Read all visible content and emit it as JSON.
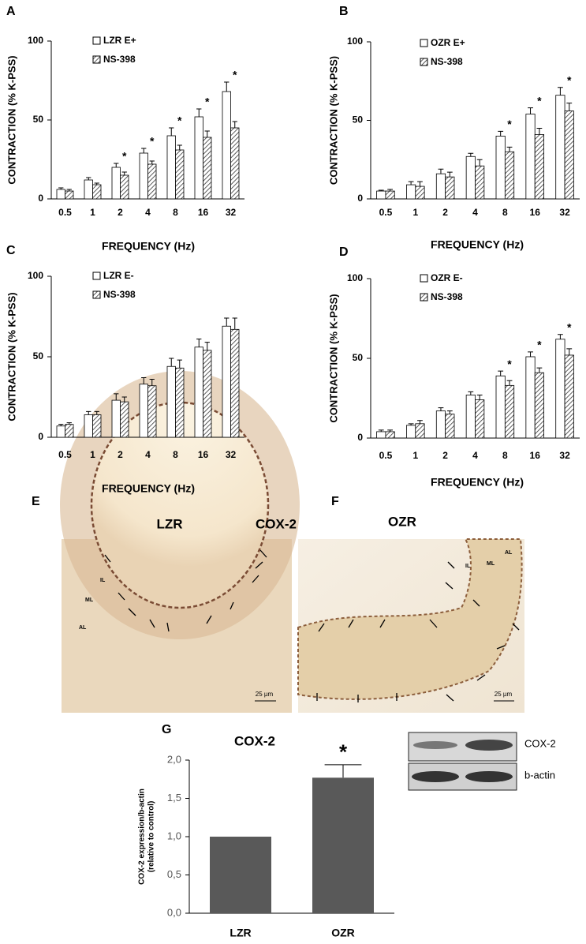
{
  "chart_data": [
    {
      "type": "bar",
      "label": "A",
      "ylabel": "CONTRACTION (% K-PSS)",
      "xlabel": "FREQUENCY (Hz)",
      "categories": [
        "0.5",
        "1",
        "2",
        "4",
        "8",
        "16",
        "32"
      ],
      "series": [
        {
          "name": "LZR E+",
          "color": "#ffffff",
          "hatch": false,
          "values": [
            6,
            12,
            20,
            29,
            40,
            52,
            68
          ],
          "errors": [
            1,
            1.5,
            2.5,
            3,
            5,
            5,
            6
          ]
        },
        {
          "name": "NS-398",
          "color": "#ffffff",
          "hatch": true,
          "values": [
            5,
            9,
            15,
            22,
            31,
            39,
            45
          ],
          "errors": [
            1,
            1,
            2,
            2,
            3,
            4,
            4
          ]
        }
      ],
      "significant_indices": [
        2,
        3,
        4,
        5,
        6
      ],
      "significance_label": "*",
      "ylim": [
        0,
        100
      ],
      "yticks": [
        0,
        50,
        100
      ]
    },
    {
      "type": "bar",
      "label": "B",
      "ylabel": "CONTRACTION (% K-PSS)",
      "xlabel": "FREQUENCY (Hz)",
      "categories": [
        "0.5",
        "1",
        "2",
        "4",
        "8",
        "16",
        "32"
      ],
      "series": [
        {
          "name": "OZR E+",
          "color": "#ffffff",
          "hatch": false,
          "values": [
            5,
            9,
            16,
            27,
            40,
            54,
            66
          ],
          "errors": [
            0.5,
            2,
            3,
            2,
            3,
            4,
            5
          ]
        },
        {
          "name": "NS-398",
          "color": "#ffffff",
          "hatch": true,
          "values": [
            5,
            8,
            14,
            21,
            30,
            41,
            56
          ],
          "errors": [
            1,
            3,
            3,
            4,
            3,
            4,
            5
          ]
        }
      ],
      "significant_indices": [
        4,
        5,
        6
      ],
      "significance_label": "*",
      "ylim": [
        0,
        100
      ],
      "yticks": [
        0,
        50,
        100
      ]
    },
    {
      "type": "bar",
      "label": "C",
      "ylabel": "CONTRACTION (% K-PSS)",
      "xlabel": "FREQUENCY (Hz)",
      "categories": [
        "0.5",
        "1",
        "2",
        "4",
        "8",
        "16",
        "32"
      ],
      "series": [
        {
          "name": "LZR E-",
          "color": "#ffffff",
          "hatch": false,
          "values": [
            7,
            14,
            23,
            33,
            44,
            56,
            69
          ],
          "errors": [
            1,
            2,
            4,
            4,
            5,
            5,
            5
          ]
        },
        {
          "name": "NS-398",
          "color": "#ffffff",
          "hatch": true,
          "values": [
            8,
            14,
            22,
            32,
            43,
            54,
            67
          ],
          "errors": [
            1,
            2,
            3,
            4,
            5,
            5,
            7
          ]
        }
      ],
      "ylim": [
        0,
        100
      ],
      "yticks": [
        0,
        50,
        100
      ]
    },
    {
      "type": "bar",
      "label": "D",
      "ylabel": "CONTRACTION (% K-PSS)",
      "xlabel": "FREQUENCY (Hz)",
      "categories": [
        "0.5",
        "1",
        "2",
        "4",
        "8",
        "16",
        "32"
      ],
      "series": [
        {
          "name": "OZR E-",
          "color": "#ffffff",
          "hatch": false,
          "values": [
            4,
            8,
            17,
            27,
            39,
            51,
            62
          ],
          "errors": [
            1,
            1,
            2,
            2,
            3,
            3,
            3
          ]
        },
        {
          "name": "NS-398",
          "color": "#ffffff",
          "hatch": true,
          "values": [
            4,
            9,
            15,
            24,
            33,
            41,
            52
          ],
          "errors": [
            1,
            2,
            2,
            3,
            3,
            3,
            4
          ]
        }
      ],
      "significant_indices": [
        4,
        5,
        6
      ],
      "significance_label": "*",
      "ylim": [
        0,
        100
      ],
      "yticks": [
        0,
        50,
        100
      ]
    },
    {
      "type": "bar",
      "label": "G",
      "title": "COX-2",
      "ylabel": [
        "COX-2 expression/b-actin",
        "(relative to control)"
      ],
      "categories": [
        "LZR",
        "OZR"
      ],
      "series": [
        {
          "color": "#595959",
          "hatch": false,
          "values": [
            1.0,
            1.77
          ],
          "errors": [
            null,
            0.17
          ]
        }
      ],
      "significant_indices": [
        1
      ],
      "significance_label": "*",
      "ylim": [
        0,
        2
      ],
      "yticks": [
        {
          "value": 0,
          "label": "0,0"
        },
        {
          "value": 0.5,
          "label": "0,5"
        },
        {
          "value": 1,
          "label": "1,0"
        },
        {
          "value": 1.5,
          "label": "1,5"
        },
        {
          "value": 2,
          "label": "2,0"
        }
      ]
    }
  ],
  "micrographs": [
    {
      "label": "E",
      "title": "LZR",
      "stain": "COX-2",
      "layers": [
        "IL",
        "ML",
        "AL"
      ],
      "scale": "25 µm"
    },
    {
      "label": "F",
      "title": "OZR",
      "layers": [
        "IL",
        "ML",
        "AL"
      ],
      "scale": "25 µm"
    }
  ],
  "blot": {
    "bands": [
      "COX-2",
      "b-actin"
    ]
  }
}
